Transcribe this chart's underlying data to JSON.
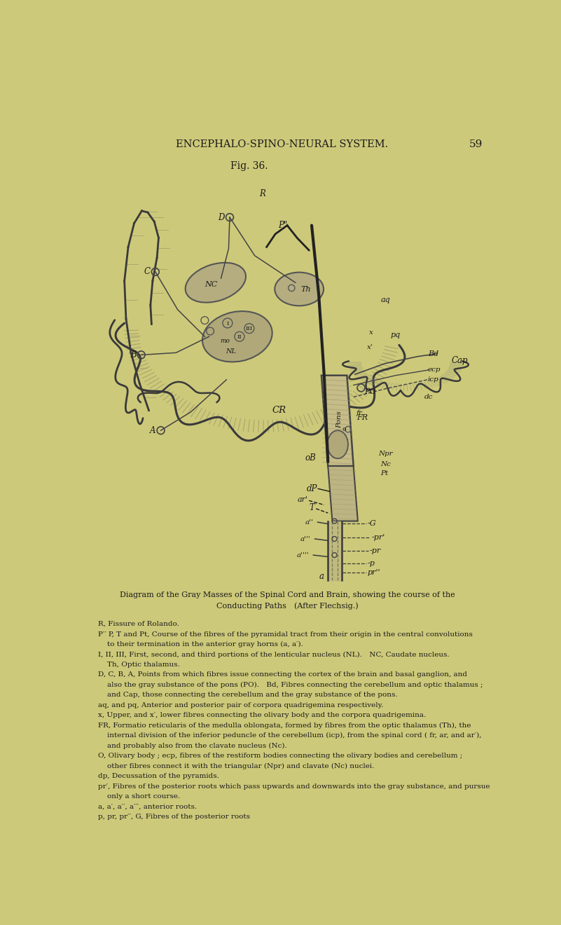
{
  "bg_color": "#cdc97a",
  "title_header": "ENCEPHALO-SPINO-NEURAL SYSTEM.",
  "page_num": "59",
  "fig_label": "Fig. 36.",
  "caption_title": "Diagram of the Gray Masses of the Spinal Cord and Brain, showing the course of the\nConducting Paths (After Flechsig.)",
  "caption_lines": [
    "R, Fissure of Rolando.",
    "P′′ P, T and Pt, Course of the fibres of the pyramidal tract from their origin in the central convolutions",
    "    to their termination in the anterior gray horns (a, a′).",
    "I, II, III, First, second, and third portions of the lenticular nucleus (NL). NC, Caudate nucleus.",
    "    Th, Optic thalamus.",
    "D, C, B, A, Points from which fibres issue connecting the cortex of the brain and basal ganglion, and",
    "    also the gray substance of the pons (PO). Bd, Fibres connecting the cerebellum and optic thalamus ;",
    "    and Cap, those connecting the cerebellum and the gray substance of the pons.",
    "aq, and pq, Anterior and posterior pair of corpora quadrigemina respectively.",
    "x, Upper, and x′, lower fibres connecting the olivary body and the corpora quadrigemina.",
    "FR, Formatio reticularis of the medulla oblongata, formed by fibres from the optic thalamus (Th), the",
    "    internal division of the inferior peduncle of the cerebellum (icp), from the spinal cord ( fr, ar, and ar′),",
    "    and probably also from the clavate nucleus (Nc).",
    "O, Olivary body ; ecp, fibres of the restiform bodies connecting the olivary bodies and cerebellum ;",
    "    other fibres connect it with the triangular (Npr) and clavate (Nc) nuclei.",
    "dp, Decussation of the pyramids.",
    "pr′, Fibres of the posterior roots which pass upwards and downwards into the gray substance, and pursue",
    "    only a short course.",
    "a, a′, a′′, a′′′, anterior roots.",
    "p, pr, pr′′, G, Fibres of the posterior roots"
  ]
}
